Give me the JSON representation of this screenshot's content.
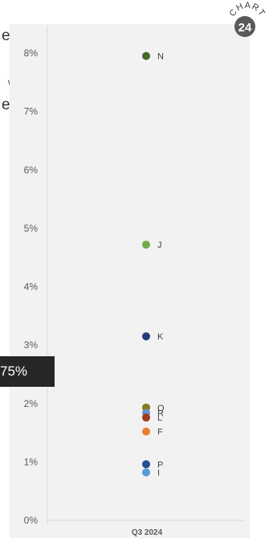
{
  "fragments": [
    "e",
    "\\",
    "e"
  ],
  "callout": "75%",
  "badge": {
    "top_text": "CHART",
    "number": "24"
  },
  "chart_data": {
    "type": "scatter",
    "categories": [
      "Q3 2024"
    ],
    "ylim": [
      0,
      8.4
    ],
    "yticks": [
      "0%",
      "1%",
      "2%",
      "3%",
      "4%",
      "5%",
      "6%",
      "7%",
      "8%"
    ],
    "grid": false,
    "points": [
      {
        "label": "N",
        "value": 7.95,
        "color": "#3e6b2f"
      },
      {
        "label": "J",
        "value": 4.72,
        "color": "#70ad47"
      },
      {
        "label": "K",
        "value": 3.15,
        "color": "#203f7a"
      },
      {
        "label": "O",
        "value": 1.93,
        "color": "#8a7a1e"
      },
      {
        "label": "R",
        "value": 1.84,
        "color": "#6b8fcf"
      },
      {
        "label": "L",
        "value": 1.76,
        "color": "#9e3a1e"
      },
      {
        "label": "F",
        "value": 1.52,
        "color": "#ed7d31"
      },
      {
        "label": "P",
        "value": 0.96,
        "color": "#264f8f"
      },
      {
        "label": "I",
        "value": 0.82,
        "color": "#5b9bd5"
      }
    ]
  }
}
